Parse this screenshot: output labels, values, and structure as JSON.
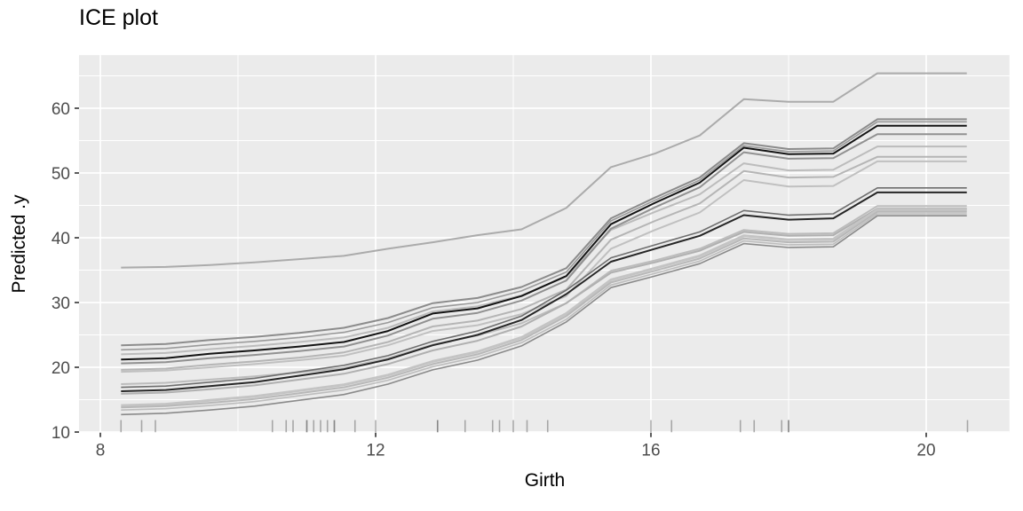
{
  "title": "ICE plot",
  "colors": {
    "panel_background": "#ebebeb",
    "grid_major": "#ffffff",
    "grid_minor": "#ffffff",
    "tick_label": "#4d4d4d",
    "tick_mark": "#333333",
    "rug": "#6f6f6f",
    "title_text": "#000000"
  },
  "chart_data": {
    "type": "line",
    "title": "ICE plot",
    "xlabel": "Girth",
    "ylabel": "Predicted .y",
    "xlim": [
      7.69,
      21.21
    ],
    "ylim": [
      9.9,
      68.2
    ],
    "x_ticks": [
      8,
      12,
      16,
      20
    ],
    "x_minor_ticks": [
      10,
      14,
      18
    ],
    "y_ticks": [
      10,
      20,
      30,
      40,
      50,
      60
    ],
    "y_minor_ticks": [
      15,
      25,
      35,
      45,
      55,
      65
    ],
    "grid": "white major/minor gridlines on grey panel",
    "legend": "none",
    "x": [
      8.3,
      8.95,
      9.59,
      10.24,
      10.89,
      11.54,
      12.18,
      12.83,
      13.48,
      14.12,
      14.77,
      15.42,
      16.06,
      16.71,
      17.35,
      18.0,
      18.65,
      19.29,
      19.94,
      20.59
    ],
    "series": [
      {
        "name": "ice-line-max",
        "color": "#ababab",
        "width": 2,
        "values": [
          35.4,
          35.5,
          35.8,
          36.2,
          36.7,
          37.2,
          38.3,
          39.3,
          40.4,
          41.3,
          44.6,
          50.9,
          53.0,
          55.8,
          61.4,
          61.0,
          61.0,
          65.4,
          65.4,
          65.4
        ]
      },
      {
        "name": "ice-line-2",
        "color": "#bcbcbc",
        "width": 2,
        "values": [
          22.0,
          22.2,
          22.8,
          23.3,
          23.9,
          24.6,
          26.1,
          28.6,
          29.4,
          31.1,
          34.0,
          41.2,
          44.0,
          46.7,
          51.5,
          50.4,
          50.5,
          54.1,
          54.1,
          54.1
        ]
      },
      {
        "name": "ice-line-3",
        "color": "#b5b5b5",
        "width": 2,
        "values": [
          19.6,
          19.8,
          20.4,
          20.9,
          21.5,
          22.3,
          23.9,
          26.3,
          27.2,
          29.0,
          32.0,
          39.7,
          42.6,
          45.3,
          50.3,
          49.3,
          49.4,
          52.5,
          52.5,
          52.5
        ]
      },
      {
        "name": "ice-line-4",
        "color": "#c0c0c0",
        "width": 2,
        "values": [
          19.3,
          19.5,
          20.0,
          20.5,
          21.1,
          21.8,
          23.4,
          25.6,
          26.5,
          28.2,
          31.0,
          38.3,
          41.2,
          43.9,
          48.9,
          47.9,
          48.0,
          51.8,
          51.8,
          51.8
        ]
      },
      {
        "name": "ice-line-5",
        "color": "#bcbcbc",
        "width": 2,
        "values": [
          17.4,
          17.6,
          18.1,
          18.6,
          19.2,
          19.9,
          21.4,
          23.5,
          24.9,
          26.8,
          29.9,
          34.9,
          36.5,
          38.3,
          41.2,
          40.6,
          40.7,
          44.9,
          44.9,
          44.9
        ]
      },
      {
        "name": "ice-line-6",
        "color": "#b0b0b0",
        "width": 2,
        "values": [
          15.9,
          16.1,
          16.6,
          17.2,
          18.1,
          19.0,
          20.5,
          22.6,
          24.1,
          26.3,
          29.9,
          34.6,
          36.2,
          38.0,
          40.9,
          40.3,
          40.4,
          44.5,
          44.5,
          44.5
        ]
      },
      {
        "name": "ice-line-7",
        "color": "#c4c4c4",
        "width": 3,
        "values": [
          14.1,
          14.3,
          14.9,
          15.5,
          16.4,
          17.3,
          18.8,
          20.9,
          22.4,
          24.6,
          28.3,
          33.5,
          35.3,
          37.2,
          40.3,
          39.7,
          39.8,
          44.3,
          44.3,
          44.3
        ]
      },
      {
        "name": "ice-line-8",
        "color": "#b8b8b8",
        "width": 2,
        "values": [
          13.8,
          14.0,
          14.5,
          15.1,
          16.0,
          16.9,
          18.4,
          20.5,
          22.0,
          24.2,
          27.9,
          33.1,
          34.9,
          36.8,
          39.9,
          39.3,
          39.4,
          44.0,
          44.0,
          44.0
        ]
      },
      {
        "name": "ice-line-9",
        "color": "#bdbdbd",
        "width": 1.6,
        "values": [
          13.4,
          13.6,
          14.1,
          14.7,
          15.6,
          16.5,
          18.0,
          20.1,
          21.6,
          23.8,
          27.4,
          32.7,
          34.5,
          36.4,
          39.5,
          38.9,
          39.0,
          43.7,
          43.7,
          43.7
        ]
      },
      {
        "name": "ice-line-10",
        "color": "#9a9a9a",
        "width": 1.6,
        "values": [
          22.7,
          22.9,
          23.5,
          24.0,
          24.6,
          25.4,
          26.9,
          29.2,
          30.0,
          31.8,
          34.7,
          42.6,
          45.8,
          48.9,
          54.2,
          53.3,
          53.4,
          57.9,
          57.9,
          57.9
        ]
      },
      {
        "name": "ice-line-11",
        "color": "#8c8c8c",
        "width": 2,
        "values": [
          23.4,
          23.6,
          24.2,
          24.7,
          25.3,
          26.1,
          27.6,
          29.9,
          30.7,
          32.4,
          35.3,
          43.0,
          46.2,
          49.3,
          54.6,
          53.7,
          53.8,
          58.3,
          58.3,
          58.3
        ]
      },
      {
        "name": "ice-line-12",
        "color": "#919191",
        "width": 2,
        "values": [
          20.6,
          20.8,
          21.4,
          21.9,
          22.5,
          23.2,
          24.9,
          27.5,
          28.4,
          30.3,
          33.4,
          41.4,
          44.7,
          47.8,
          53.2,
          52.2,
          52.3,
          56.0,
          56.0,
          56.0
        ]
      },
      {
        "name": "ice-line-13",
        "color": "#8a8a8a",
        "width": 1.6,
        "values": [
          12.7,
          12.9,
          13.4,
          14.0,
          14.9,
          15.8,
          17.4,
          19.6,
          21.1,
          23.3,
          27.0,
          32.3,
          34.1,
          36.0,
          39.1,
          38.5,
          38.6,
          43.4,
          43.4,
          43.4
        ]
      },
      {
        "name": "ice-line-14",
        "color": "#6e6e6e",
        "width": 1.6,
        "values": [
          16.9,
          17.1,
          17.7,
          18.3,
          19.3,
          20.3,
          21.8,
          24.0,
          25.6,
          27.9,
          31.9,
          36.9,
          38.9,
          40.9,
          44.2,
          43.5,
          43.7,
          47.7,
          47.7,
          47.7
        ]
      },
      {
        "name": "ice-line-15",
        "color": "#262626",
        "width": 2,
        "values": [
          16.3,
          16.5,
          17.1,
          17.7,
          18.7,
          19.7,
          21.2,
          23.4,
          25.0,
          27.3,
          31.3,
          36.3,
          38.3,
          40.3,
          43.5,
          42.8,
          43.0,
          47.0,
          47.0,
          47.0
        ]
      },
      {
        "name": "ice-line-16",
        "color": "#141414",
        "width": 2,
        "values": [
          21.2,
          21.4,
          22.1,
          22.6,
          23.2,
          23.9,
          25.6,
          28.3,
          29.1,
          31.0,
          34.1,
          42.1,
          45.4,
          48.5,
          53.9,
          52.9,
          53.0,
          57.3,
          57.3,
          57.3
        ]
      }
    ],
    "rug_x": [
      8.3,
      8.6,
      8.8,
      10.5,
      10.7,
      10.8,
      11.0,
      11.0,
      11.1,
      11.2,
      11.3,
      11.4,
      11.4,
      11.7,
      12.0,
      12.9,
      12.9,
      13.3,
      13.7,
      13.8,
      14.0,
      14.2,
      14.5,
      16.0,
      16.3,
      17.3,
      17.5,
      17.9,
      18.0,
      18.0,
      20.6
    ]
  }
}
